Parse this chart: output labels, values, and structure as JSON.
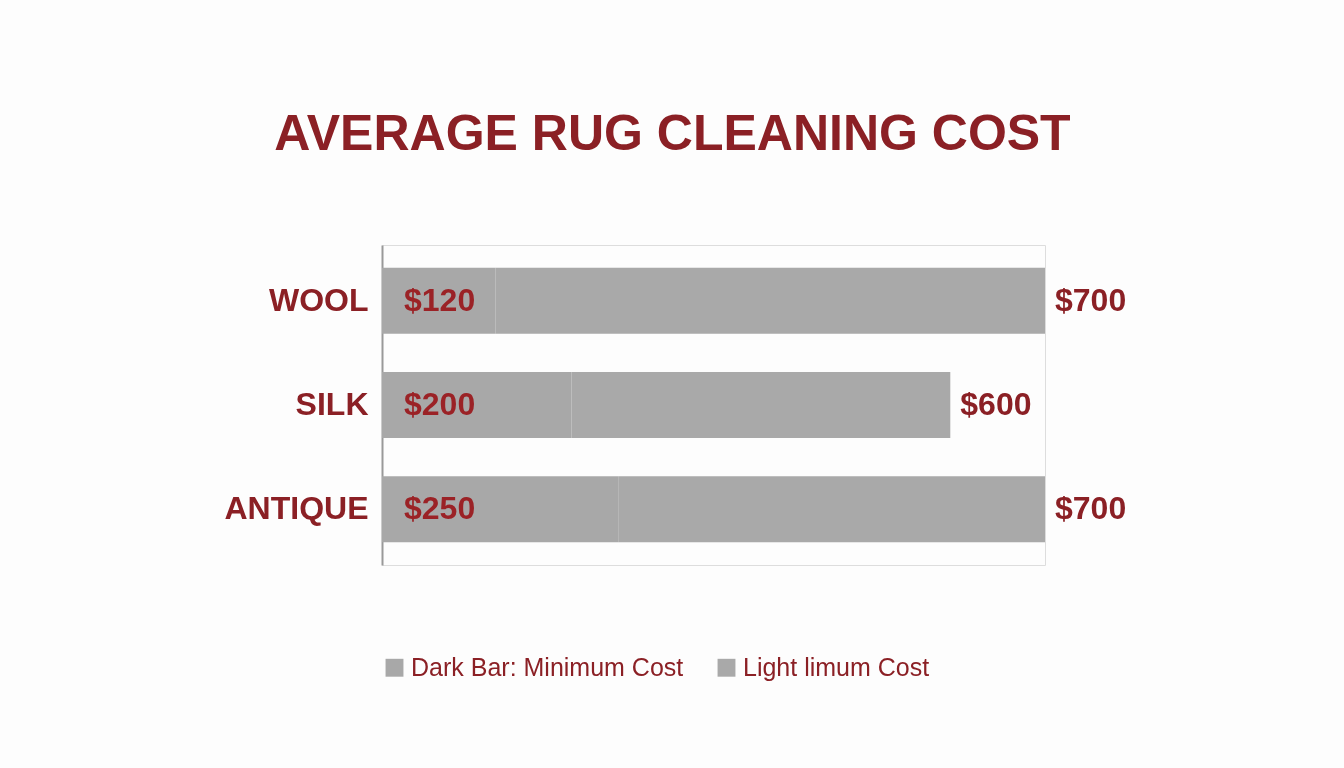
{
  "chart_data": {
    "type": "bar",
    "orientation": "horizontal",
    "stacked": true,
    "title": "AVERAGE RUG CLEANING COST",
    "categories": [
      "WOOL",
      "SILK",
      "ANTIQUE"
    ],
    "series": [
      {
        "name": "Dark Bar: Minimum Cost",
        "color": "#a8a8a8",
        "values": [
          120,
          200,
          250
        ],
        "value_labels": [
          "$120",
          "$200",
          "$250"
        ]
      },
      {
        "name": "Light limum Cost",
        "color": "#a9a9a9",
        "values": [
          580,
          400,
          450
        ]
      }
    ],
    "totals": [
      "$700",
      "$600",
      "$700"
    ],
    "legend": "bottom"
  }
}
